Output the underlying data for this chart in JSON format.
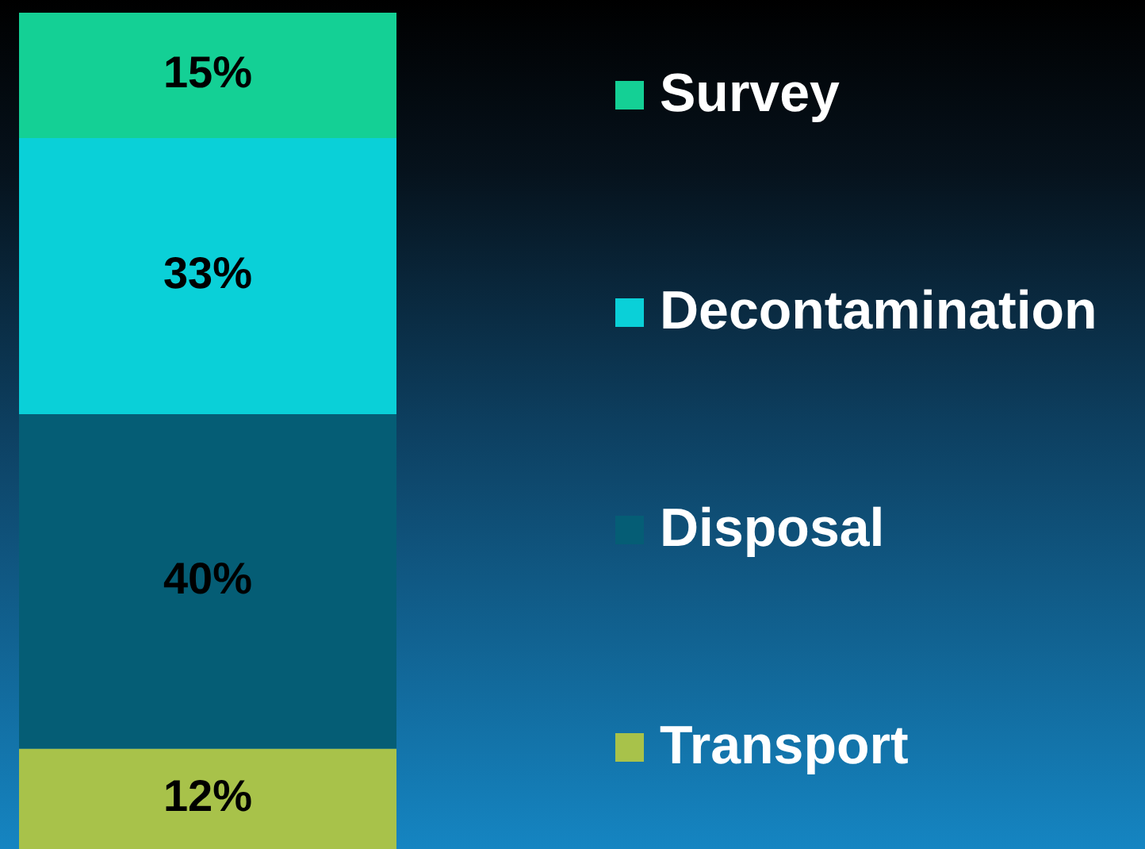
{
  "chart_data": {
    "type": "bar",
    "stacked": true,
    "categories": [
      null
    ],
    "series": [
      {
        "name": "Transport",
        "color": "#a8c24a",
        "values": [
          12
        ],
        "value_labels": [
          "12%"
        ]
      },
      {
        "name": "Disposal",
        "color": "#055d75",
        "values": [
          40
        ],
        "value_labels": [
          "40%"
        ]
      },
      {
        "name": "Decontamination",
        "color": "#0ad0d8",
        "values": [
          33
        ],
        "value_labels": [
          "33%"
        ]
      },
      {
        "name": "Survey",
        "color": "#14d095",
        "values": [
          15
        ],
        "value_labels": [
          "15%"
        ]
      }
    ],
    "tick_labels": false,
    "legend": "right"
  }
}
